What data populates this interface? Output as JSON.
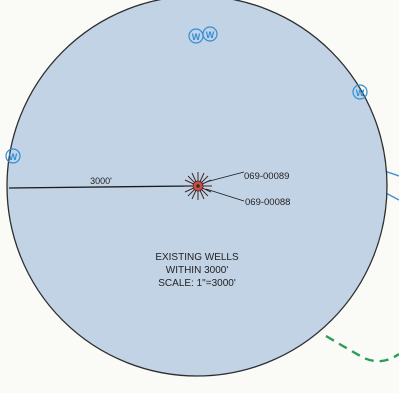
{
  "map": {
    "radius_label": "3000'",
    "center_wells": [
      {
        "id": "069-00089"
      },
      {
        "id": "069-00088"
      }
    ],
    "notes": [
      "EXISTING WELLS",
      "WITHIN 3000'",
      "SCALE: 1\"=3000'"
    ],
    "well_symbol_letter": "W",
    "colors": {
      "buffer_fill": "#c3d3e6",
      "buffer_outline": "#2e2e2e",
      "well_symbol": "#2f8ed8",
      "boundary_green": "#2a9d57",
      "boundary_blue": "#3b8fd6",
      "center_marker": "#d14b42",
      "text": "#222222"
    }
  }
}
